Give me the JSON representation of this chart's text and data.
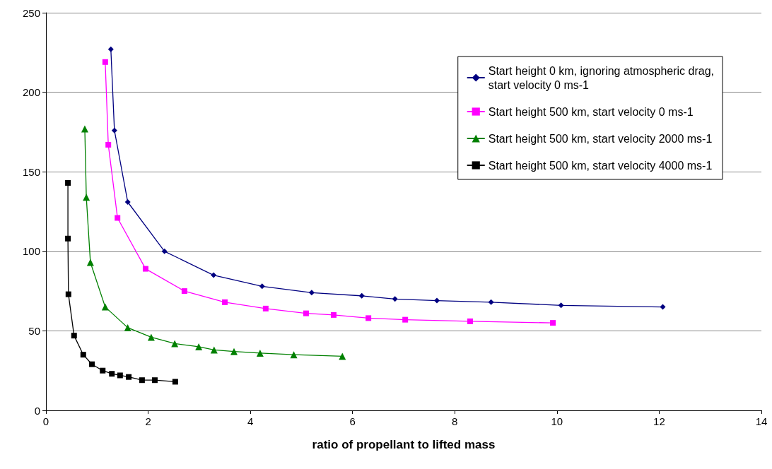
{
  "chart_data": {
    "type": "line",
    "xlabel": "ratio of propellant to lifted mass",
    "xlim": [
      0,
      14
    ],
    "xticks": [
      0,
      2,
      4,
      6,
      8,
      10,
      12,
      14
    ],
    "ylim": [
      0,
      250
    ],
    "yticks": [
      0,
      50,
      100,
      150,
      200,
      250
    ],
    "grid": "y",
    "legend": "top right",
    "line_style": "solid",
    "series": [
      {
        "name": "Start height 0 km, ignoring atmospheric drag,\nstart velocity 0 ms-1",
        "color": "#000080",
        "marker": "diamond",
        "x": [
          1.27,
          1.34,
          1.6,
          2.32,
          3.28,
          4.23,
          5.2,
          6.18,
          6.83,
          7.65,
          8.71,
          10.08,
          12.07
        ],
        "values": [
          227,
          176,
          131,
          100,
          85,
          78,
          74,
          72,
          70,
          69,
          68,
          66,
          65
        ]
      },
      {
        "name": "Start height 500 km, start velocity 0 ms-1",
        "color": "#ff00ff",
        "marker": "square",
        "x": [
          1.16,
          1.22,
          1.4,
          1.95,
          2.71,
          3.5,
          4.3,
          5.09,
          5.63,
          6.31,
          7.03,
          8.3,
          9.92
        ],
        "values": [
          219,
          167,
          121,
          89,
          75,
          68,
          64,
          61,
          60,
          58,
          57,
          56,
          55
        ]
      },
      {
        "name": "Start height 500 km, start velocity 2000 ms-1",
        "color": "#008000",
        "marker": "triangle",
        "x": [
          0.76,
          0.79,
          0.87,
          1.16,
          1.6,
          2.06,
          2.52,
          2.99,
          3.29,
          3.68,
          4.19,
          4.85,
          5.8
        ],
        "values": [
          177,
          134,
          93,
          65,
          52,
          46,
          42,
          40,
          38,
          37,
          36,
          35,
          34
        ]
      },
      {
        "name": "Start height 500 km, start velocity 4000 ms-1",
        "color": "#000000",
        "marker": "square",
        "x": [
          0.43,
          0.43,
          0.44,
          0.55,
          0.73,
          0.9,
          1.11,
          1.29,
          1.45,
          1.62,
          1.88,
          2.13,
          2.53
        ],
        "values": [
          143,
          108,
          73,
          47,
          35,
          29,
          25,
          23,
          22,
          21,
          19,
          19,
          18
        ]
      }
    ]
  }
}
